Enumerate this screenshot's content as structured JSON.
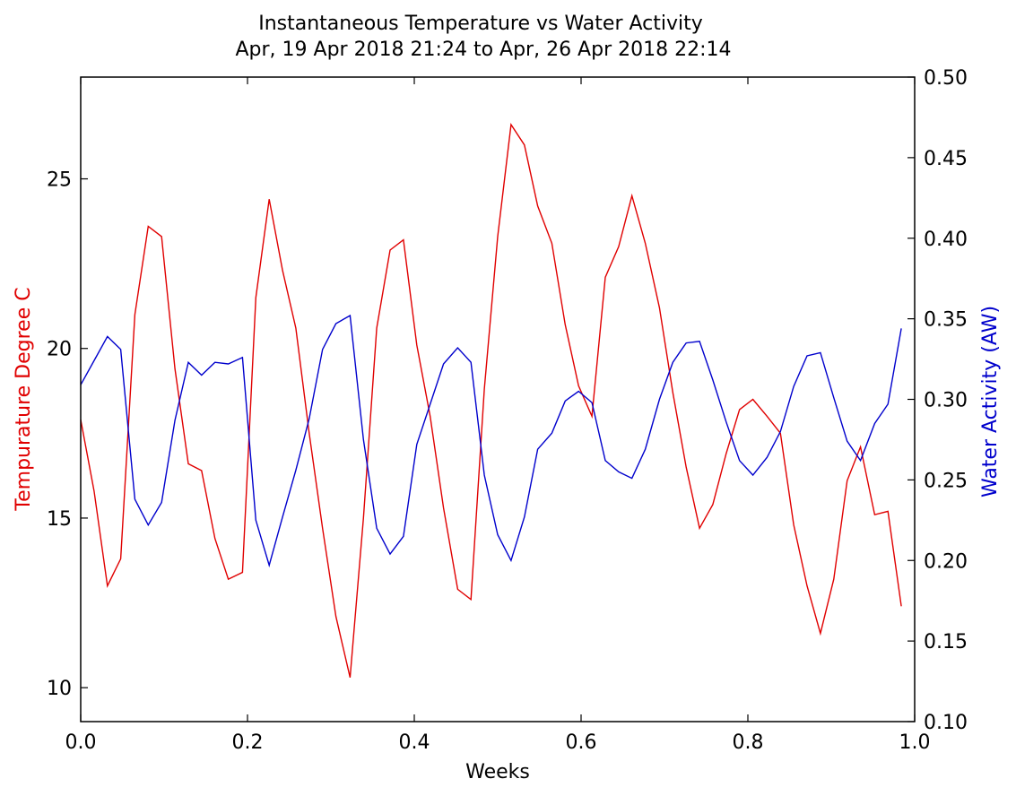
{
  "chart_data": {
    "type": "line",
    "title": "Instantaneous Temperature vs Water Activity",
    "subtitle": "Apr, 19 Apr 2018 21:24 to Apr, 26 Apr 2018 22:14",
    "xlabel": "Weeks",
    "ylabel_left": "Tempurature Degree C",
    "ylabel_right": "Water Activity (AW)",
    "xlim": [
      0.0,
      1.0
    ],
    "ylim_left": [
      9,
      28
    ],
    "ylim_right": [
      0.1,
      0.5
    ],
    "x_ticks": [
      "0.0",
      "0.2",
      "0.4",
      "0.6",
      "0.8",
      "1.0"
    ],
    "y_left_ticks": [
      "10",
      "15",
      "20",
      "25"
    ],
    "y_right_ticks": [
      "0.10",
      "0.15",
      "0.20",
      "0.25",
      "0.30",
      "0.35",
      "0.40",
      "0.45",
      "0.50"
    ],
    "grid": false,
    "colors": {
      "temperature": "#e00000",
      "water_activity": "#0000cc"
    },
    "series": [
      {
        "axis": "left",
        "color": "#e00000",
        "x": [
          0.0,
          0.016,
          0.032,
          0.048,
          0.065,
          0.081,
          0.097,
          0.113,
          0.129,
          0.145,
          0.161,
          0.177,
          0.194,
          0.21,
          0.226,
          0.242,
          0.258,
          0.274,
          0.29,
          0.306,
          0.323,
          0.339,
          0.355,
          0.371,
          0.387,
          0.403,
          0.419,
          0.435,
          0.452,
          0.468,
          0.484,
          0.5,
          0.516,
          0.532,
          0.548,
          0.565,
          0.581,
          0.597,
          0.613,
          0.629,
          0.645,
          0.661,
          0.677,
          0.694,
          0.71,
          0.726,
          0.742,
          0.758,
          0.774,
          0.79,
          0.806,
          0.823,
          0.839,
          0.855,
          0.871,
          0.887,
          0.903,
          0.919,
          0.935,
          0.952,
          0.968,
          0.984
        ],
        "values": [
          17.9,
          15.8,
          13.0,
          13.8,
          21.0,
          23.6,
          23.3,
          19.4,
          16.6,
          16.4,
          14.4,
          13.2,
          13.4,
          21.5,
          24.4,
          22.3,
          20.6,
          17.5,
          14.7,
          12.1,
          10.3,
          15.0,
          20.6,
          22.9,
          23.2,
          20.1,
          18.0,
          15.3,
          12.9,
          12.6,
          18.8,
          23.3,
          26.6,
          26.0,
          24.2,
          23.1,
          20.7,
          18.9,
          18.0,
          22.1,
          23.0,
          24.5,
          23.1,
          21.2,
          18.7,
          16.5,
          14.7,
          15.4,
          16.9,
          18.2,
          18.5,
          18.0,
          17.5,
          14.8,
          13.0,
          11.6,
          13.2,
          16.1,
          17.1,
          15.1,
          15.2,
          12.4
        ]
      },
      {
        "axis": "right",
        "color": "#0000cc",
        "x": [
          0.0,
          0.016,
          0.032,
          0.048,
          0.065,
          0.081,
          0.097,
          0.113,
          0.129,
          0.145,
          0.161,
          0.177,
          0.194,
          0.21,
          0.226,
          0.242,
          0.258,
          0.274,
          0.29,
          0.306,
          0.323,
          0.339,
          0.355,
          0.371,
          0.387,
          0.403,
          0.419,
          0.435,
          0.452,
          0.468,
          0.484,
          0.5,
          0.516,
          0.532,
          0.548,
          0.565,
          0.581,
          0.597,
          0.613,
          0.629,
          0.645,
          0.661,
          0.677,
          0.694,
          0.71,
          0.726,
          0.742,
          0.758,
          0.774,
          0.79,
          0.806,
          0.823,
          0.839,
          0.855,
          0.871,
          0.887,
          0.903,
          0.919,
          0.935,
          0.952,
          0.968,
          0.984
        ],
        "values": [
          0.309,
          0.324,
          0.339,
          0.331,
          0.238,
          0.222,
          0.236,
          0.287,
          0.323,
          0.315,
          0.323,
          0.322,
          0.326,
          0.225,
          0.197,
          0.227,
          0.256,
          0.288,
          0.331,
          0.347,
          0.352,
          0.275,
          0.22,
          0.204,
          0.215,
          0.272,
          0.297,
          0.322,
          0.332,
          0.323,
          0.253,
          0.216,
          0.2,
          0.227,
          0.269,
          0.279,
          0.299,
          0.305,
          0.298,
          0.262,
          0.255,
          0.251,
          0.269,
          0.3,
          0.323,
          0.335,
          0.336,
          0.312,
          0.286,
          0.262,
          0.253,
          0.264,
          0.28,
          0.308,
          0.327,
          0.329,
          0.301,
          0.274,
          0.262,
          0.285,
          0.297,
          0.344
        ]
      }
    ]
  }
}
